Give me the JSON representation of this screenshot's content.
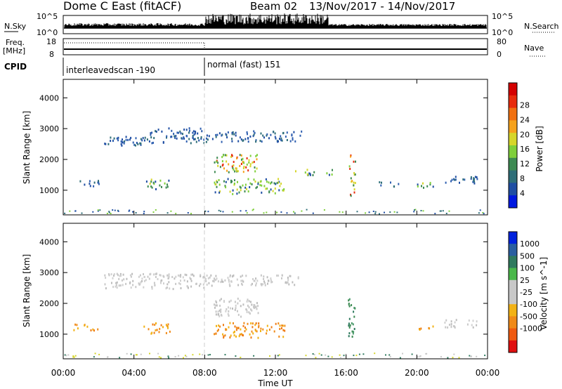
{
  "header": {
    "station": "Dome C East (fitACF)",
    "beam": "Beam 02",
    "date_range": "13/Nov/2017 - 14/Nov/2017"
  },
  "summary_panels": {
    "nsky_label": "N.Sky",
    "nsearch_label": "N.Search",
    "nsky_ticks": [
      "10^5",
      "10^0"
    ],
    "nsearch_ticks": [
      "10^5",
      "10^0"
    ],
    "freq_label_top": "Freq.",
    "freq_label_unit": "[MHz]",
    "freq_ticks": [
      "18",
      "8"
    ],
    "nave_label": "Nave",
    "nave_ticks": [
      "80",
      "0"
    ],
    "cpid_label": "CPID",
    "cpid_segments": [
      {
        "start_hour": 0,
        "text": "interleavedscan -190"
      },
      {
        "start_hour": 8,
        "text": "normal (fast) 151"
      }
    ]
  },
  "chart_data": [
    {
      "type": "heatmap",
      "panel": "power",
      "xlabel": "Time UT",
      "ylabel": "Slant Range [km]",
      "x_range_hours": [
        0,
        24
      ],
      "x_ticks": [
        "00:00",
        "04:00",
        "08:00",
        "12:00",
        "16:00",
        "20:00",
        "00:00"
      ],
      "y_ticks": [
        "1000",
        "2000",
        "3000",
        "4000"
      ],
      "ylim": [
        200,
        4600
      ],
      "colorbar": {
        "label": "Power [dB]",
        "ticks": [
          "4",
          "8",
          "12",
          "16",
          "20",
          "24",
          "28"
        ],
        "colors": [
          "#0018e0",
          "#1f4ea3",
          "#2e6e78",
          "#3d8a52",
          "#7fcf3a",
          "#d6d62a",
          "#f6a21c",
          "#f07010",
          "#e82b0c",
          "#d40000"
        ]
      },
      "echo_regions": [
        {
          "t0": 2.3,
          "t1": 4.8,
          "r0": 2450,
          "r1": 2780,
          "level": "low"
        },
        {
          "t0": 4.8,
          "t1": 8.0,
          "r0": 2550,
          "r1": 3050,
          "level": "low"
        },
        {
          "t0": 8.0,
          "t1": 13.5,
          "r0": 2600,
          "r1": 2950,
          "level": "low"
        },
        {
          "t0": 4.5,
          "t1": 6.0,
          "r0": 1050,
          "r1": 1400,
          "level": "mid"
        },
        {
          "t0": 8.5,
          "t1": 11.0,
          "r0": 1600,
          "r1": 2200,
          "level": "high"
        },
        {
          "t0": 8.5,
          "t1": 12.5,
          "r0": 900,
          "r1": 1400,
          "level": "mid"
        },
        {
          "t0": 13.0,
          "t1": 15.5,
          "r0": 1500,
          "r1": 1700,
          "level": "mid"
        },
        {
          "t0": 0.5,
          "t1": 2.0,
          "r0": 1150,
          "r1": 1350,
          "level": "low"
        },
        {
          "t0": 16.1,
          "t1": 16.5,
          "r0": 800,
          "r1": 2200,
          "level": "high"
        },
        {
          "t0": 17.8,
          "t1": 19.0,
          "r0": 1150,
          "r1": 1300,
          "level": "low"
        },
        {
          "t0": 20.0,
          "t1": 21.0,
          "r0": 1100,
          "r1": 1300,
          "level": "mid"
        },
        {
          "t0": 21.5,
          "t1": 23.5,
          "r0": 1250,
          "r1": 1500,
          "level": "low"
        }
      ]
    },
    {
      "type": "heatmap",
      "panel": "velocity",
      "xlabel": "Time UT",
      "ylabel": "Slant Range [km]",
      "x_range_hours": [
        0,
        24
      ],
      "x_ticks": [
        "00:00",
        "04:00",
        "08:00",
        "12:00",
        "16:00",
        "20:00",
        "00:00"
      ],
      "y_ticks": [
        "1000",
        "2000",
        "3000",
        "4000"
      ],
      "ylim": [
        200,
        4600
      ],
      "colorbar": {
        "label": "Velocity [m s^-1]",
        "ticks": [
          "1000",
          "500",
          "100",
          "25",
          "-25",
          "-100",
          "-500",
          "-1000"
        ],
        "colors": [
          "#0022dd",
          "#2a5fa0",
          "#2f7a5e",
          "#4ab84a",
          "#c8c8c8",
          "#c8c8c8",
          "#f2b215",
          "#f08a18",
          "#ef5a10",
          "#e01010"
        ]
      },
      "echo_regions": [
        {
          "t0": 2.3,
          "t1": 8.0,
          "r0": 2500,
          "r1": 3000,
          "level": "gray"
        },
        {
          "t0": 8.0,
          "t1": 13.5,
          "r0": 2600,
          "r1": 2950,
          "level": "gray"
        },
        {
          "t0": 8.5,
          "t1": 11.0,
          "r0": 1600,
          "r1": 2200,
          "level": "gray"
        },
        {
          "t0": 4.5,
          "t1": 6.0,
          "r0": 1050,
          "r1": 1400,
          "level": "orange"
        },
        {
          "t0": 8.5,
          "t1": 12.5,
          "r0": 900,
          "r1": 1400,
          "level": "orange"
        },
        {
          "t0": 0.5,
          "t1": 2.0,
          "r0": 1150,
          "r1": 1350,
          "level": "orange"
        },
        {
          "t0": 16.1,
          "t1": 16.5,
          "r0": 800,
          "r1": 2200,
          "level": "green"
        },
        {
          "t0": 20.0,
          "t1": 21.0,
          "r0": 1100,
          "r1": 1300,
          "level": "orange"
        },
        {
          "t0": 21.5,
          "t1": 23.5,
          "r0": 1250,
          "r1": 1500,
          "level": "gray"
        }
      ]
    }
  ]
}
